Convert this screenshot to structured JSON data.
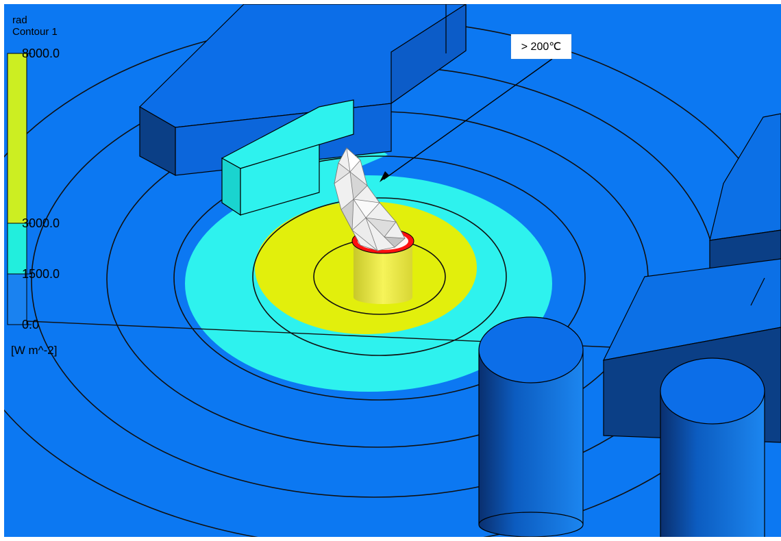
{
  "legend": {
    "title": "rad",
    "subtitle": "Contour 1",
    "unit": "[W m^-2]",
    "ticks": [
      "8000.0",
      "3000.0",
      "1500.0",
      "0.0"
    ],
    "bands": [
      {
        "from": 3000.0,
        "to": 8000.0,
        "color": "#ccee22"
      },
      {
        "from": 1500.0,
        "to": 3000.0,
        "color": "#22eedd"
      },
      {
        "from": 0.0,
        "to": 1500.0,
        "color": "#1a82f0"
      }
    ]
  },
  "annotation": {
    "text": "> 200℃"
  },
  "colors": {
    "background": "#0c78f2",
    "zone_high": "#e2ef0c",
    "zone_mid": "#2ef2ee",
    "zone_low": "#0c78f2",
    "flame": "#f0f0f0",
    "tank_rim": "#ff1010",
    "tank_body": "#f4f25a"
  }
}
